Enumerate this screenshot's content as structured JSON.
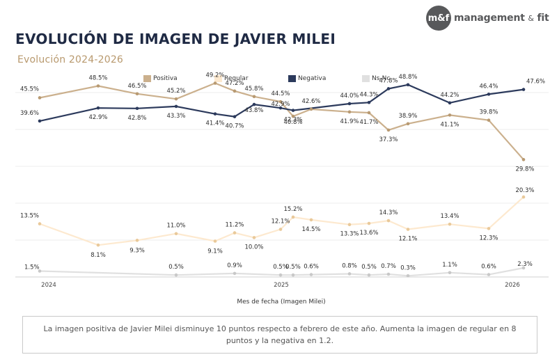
{
  "brand": {
    "logo_mark": "m&f",
    "logo_name": "management",
    "logo_amp": "&",
    "logo_suffix": "fit"
  },
  "title": "EVOLUCIÓN DE IMAGEN DE JAVIER MILEI",
  "subtitle": "Evolución 2024-2026",
  "colors": {
    "positiva": "#cbb08d",
    "regular": "#fde9cf",
    "negativa": "#2c3a5c",
    "nsnc": "#e0e0e0",
    "title": "#1f2a44",
    "subtitle": "#b8996e"
  },
  "chart_data": {
    "type": "line",
    "xlabel": "Mes de fecha (Imagen Milei)",
    "ylabel": "",
    "x_ticks": [
      "2024",
      "2025",
      "2026"
    ],
    "legend_position": "top-center",
    "grid": true,
    "series": [
      {
        "name": "Positiva",
        "values": [
          45.5,
          48.5,
          46.5,
          45.2,
          49.2,
          47.2,
          45.8,
          44.5,
          40.8,
          42.6,
          41.9,
          41.7,
          37.3,
          38.9,
          41.1,
          39.8,
          29.8
        ],
        "labels": [
          "45.5%",
          "48.5%",
          "46.5%",
          "45.2%",
          "49.2%",
          "47.2%",
          "45.8%",
          "44.5%",
          "40.8%",
          "42.6%",
          "41.9%",
          "41.7%",
          "37.3%",
          "38.9%",
          "41.1%",
          "39.8%",
          "29.8%"
        ]
      },
      {
        "name": "Regular",
        "values": [
          13.5,
          8.1,
          9.3,
          11.0,
          9.1,
          11.2,
          10.0,
          12.1,
          15.2,
          14.5,
          13.3,
          13.6,
          14.3,
          12.1,
          13.4,
          12.3,
          20.3
        ],
        "labels": [
          "13.5%",
          "8.1%",
          "9.3%",
          "11.0%",
          "9.1%",
          "11.2%",
          "10.0%",
          "12.1%",
          "15.2%",
          "14.5%",
          "13.3%",
          "13.6%",
          "14.3%",
          "12.1%",
          "13.4%",
          "12.3%",
          "20.3%"
        ]
      },
      {
        "name": "Negativa",
        "values": [
          39.6,
          42.9,
          42.8,
          43.3,
          41.4,
          40.7,
          43.8,
          42.9,
          42.3,
          44.0,
          44.3,
          47.8,
          48.8,
          44.2,
          46.4,
          47.6
        ],
        "labels": [
          "39.6%",
          "42.9%",
          "42.8%",
          "43.3%",
          "41.4%",
          "40.7%",
          "43.8%",
          "42.9%",
          "42.3%",
          "44.0%",
          "44.3%",
          "47.8%",
          "48.8%",
          "44.2%",
          "46.4%",
          "47.6%"
        ]
      },
      {
        "name": "Ns-Nc",
        "values": [
          1.5,
          0.5,
          0.9,
          0.5,
          0.5,
          0.6,
          0.8,
          0.5,
          0.7,
          0.3,
          1.1,
          0.6,
          2.3
        ],
        "labels": [
          "1.5%",
          "0.5%",
          "0.9%",
          "0.5%",
          "0.5%",
          "0.6%",
          "0.8%",
          "0.5%",
          "0.7%",
          "0.3%",
          "1.1%",
          "0.6%",
          "2.3%"
        ]
      }
    ]
  },
  "note": "La imagen positiva de Javier Milei disminuye 10 puntos respecto a febrero de este año. Aumenta la imagen de regular en 8 puntos y la negativa en 1.2."
}
